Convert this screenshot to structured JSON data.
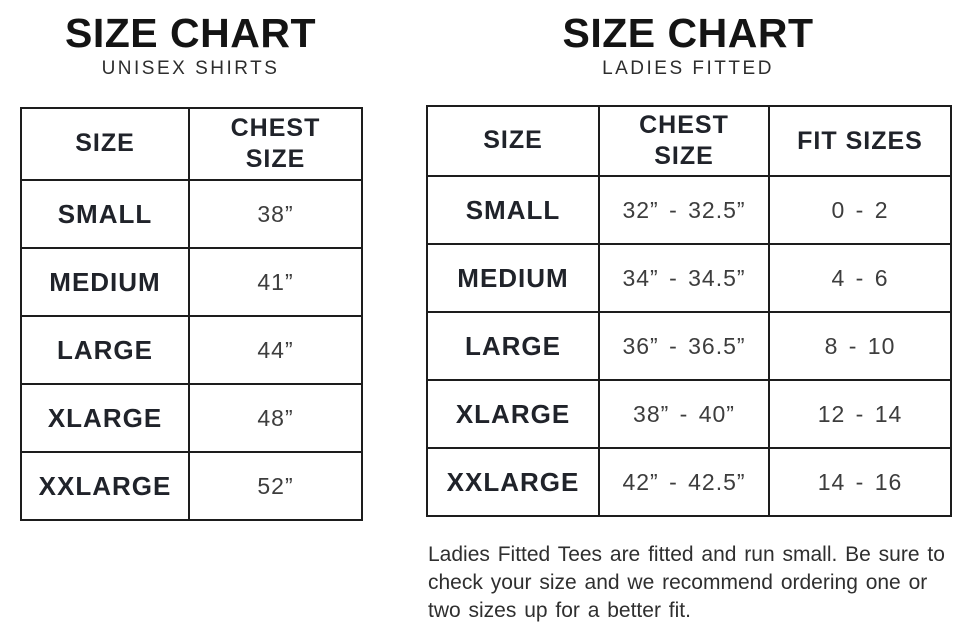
{
  "left_chart": {
    "title": "SIZE CHART",
    "subtitle": "UNISEX SHIRTS",
    "headers": [
      "SIZE",
      "CHEST SIZE"
    ],
    "rows": [
      {
        "size": "SMALL",
        "chest": "38”"
      },
      {
        "size": "MEDIUM",
        "chest": "41”"
      },
      {
        "size": "LARGE",
        "chest": "44”"
      },
      {
        "size": "XLARGE",
        "chest": "48”"
      },
      {
        "size": "XXLARGE",
        "chest": "52”"
      }
    ]
  },
  "right_chart": {
    "title": "SIZE CHART",
    "subtitle": "LADIES FITTED",
    "headers": [
      "SIZE",
      "CHEST SIZE",
      "FIT SIZES"
    ],
    "rows": [
      {
        "size": "SMALL",
        "chest": "32” - 32.5”",
        "fit": "0 - 2"
      },
      {
        "size": "MEDIUM",
        "chest": "34” - 34.5”",
        "fit": "4 - 6"
      },
      {
        "size": "LARGE",
        "chest": "36” - 36.5”",
        "fit": "8 - 10"
      },
      {
        "size": "XLARGE",
        "chest": "38” - 40”",
        "fit": "12 - 14"
      },
      {
        "size": "XXLARGE",
        "chest": "42” - 42.5”",
        "fit": "14 - 16"
      }
    ],
    "note_lines": [
      "Ladies Fitted Tees are fitted and run small. Be sure to",
      "check your size and we recommend ordering one or",
      "two sizes up for a better fit."
    ]
  },
  "colors": {
    "ink": "#1d1d1d",
    "label_text": "#20232a",
    "value_text": "#3d3d3d",
    "background": "#ffffff"
  }
}
